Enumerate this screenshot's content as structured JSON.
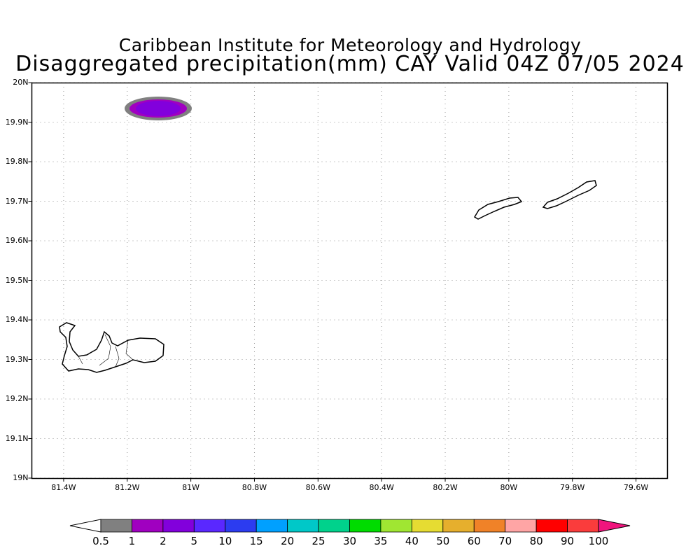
{
  "title_line1": "Caribbean Institute for Meteorology and Hydrology",
  "title_line2": "Disaggregated precipitation(mm) CAY Valid 04Z 07/05 2024",
  "lon_ticks": [
    {
      "lon": -81.4,
      "label": "81.4W"
    },
    {
      "lon": -81.2,
      "label": "81.2W"
    },
    {
      "lon": -81.0,
      "label": "81W"
    },
    {
      "lon": -80.8,
      "label": "80.8W"
    },
    {
      "lon": -80.6,
      "label": "80.6W"
    },
    {
      "lon": -80.4,
      "label": "80.4W"
    },
    {
      "lon": -80.2,
      "label": "80.2W"
    },
    {
      "lon": -80.0,
      "label": "80W"
    },
    {
      "lon": -79.8,
      "label": "79.8W"
    },
    {
      "lon": -79.6,
      "label": "79.6W"
    }
  ],
  "lat_ticks": [
    {
      "lat": 19.0,
      "label": "19N"
    },
    {
      "lat": 19.1,
      "label": "19.1N"
    },
    {
      "lat": 19.2,
      "label": "19.2N"
    },
    {
      "lat": 19.3,
      "label": "19.3N"
    },
    {
      "lat": 19.4,
      "label": "19.4N"
    },
    {
      "lat": 19.5,
      "label": "19.5N"
    },
    {
      "lat": 19.6,
      "label": "19.6N"
    },
    {
      "lat": 19.7,
      "label": "19.7N"
    },
    {
      "lat": 19.8,
      "label": "19.8N"
    },
    {
      "lat": 19.9,
      "label": "19.9N"
    },
    {
      "lat": 20.0,
      "label": "20N"
    }
  ],
  "extent": {
    "lon": [
      -81.5,
      -79.5
    ],
    "lat": [
      19.0,
      20.0
    ]
  },
  "colorbar": {
    "labels": [
      "0.5",
      "1",
      "2",
      "5",
      "10",
      "15",
      "20",
      "25",
      "30",
      "35",
      "40",
      "50",
      "60",
      "70",
      "80",
      "90",
      "100"
    ],
    "colors": [
      "#808080",
      "#a000c0",
      "#8200dc",
      "#5a28ff",
      "#2c3cf0",
      "#00a0ff",
      "#00c8c8",
      "#00d28c",
      "#00dc00",
      "#a0e632",
      "#e6dc32",
      "#e6af2d",
      "#f08228",
      "#ffa5a5",
      "#ff0000",
      "#fa3c3c"
    ],
    "under_color": "#ffffff",
    "over_color": "#f0147d"
  },
  "precip_cell": {
    "lon": -81.1,
    "lat": 19.94,
    "max_category": "2-5 mm"
  }
}
